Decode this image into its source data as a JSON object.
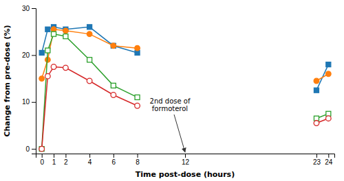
{
  "chart_data": {
    "type": "line",
    "xlabel": "Time post-dose (hours)",
    "ylabel": "Change from pre-dose (%)",
    "x": [
      0,
      0.5,
      1,
      2,
      4,
      6,
      8,
      null,
      23,
      24
    ],
    "series": [
      {
        "marker": "filled-square",
        "values": [
          20.5,
          25.5,
          26.0,
          25.5,
          26.0,
          22.0,
          20.5,
          null,
          12.5,
          18.0
        ]
      },
      {
        "marker": "filled-circle",
        "values": [
          15.0,
          19.0,
          25.5,
          25.2,
          24.5,
          22.0,
          21.5,
          null,
          14.5,
          16.0
        ]
      },
      {
        "marker": "open-square",
        "values": [
          0.0,
          21.0,
          24.5,
          24.0,
          19.0,
          13.5,
          11.0,
          null,
          6.5,
          7.5
        ]
      },
      {
        "marker": "open-circle",
        "values": [
          0.0,
          15.5,
          17.5,
          17.3,
          14.5,
          11.5,
          9.2,
          null,
          5.5,
          6.5
        ]
      }
    ],
    "xlim": [
      -0.5,
      24.5
    ],
    "xticks": [
      0,
      1,
      2,
      4,
      6,
      8,
      12,
      23,
      24
    ],
    "ylim": [
      -1,
      30
    ],
    "yticks": [
      0,
      10,
      20,
      30
    ],
    "grid": false,
    "annotations": [
      {
        "text": "2nd dose of\nformoterol",
        "x": 12
      }
    ]
  }
}
